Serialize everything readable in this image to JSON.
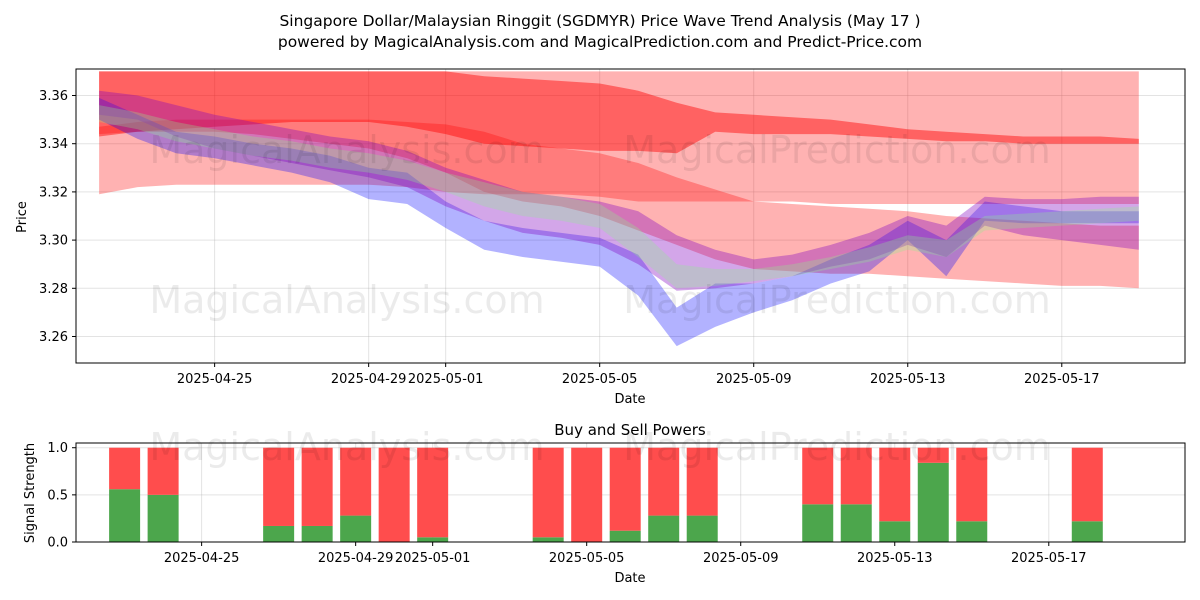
{
  "title_line1": "Singapore Dollar/Malaysian Ringgit (SGDMYR) Price Wave Trend Analysis (May 17 )",
  "title_line2": "powered by MagicalAnalysis.com and MagicalPrediction.com and Predict-Price.com",
  "watermarks": [
    "MagicalAnalysis.com",
    "MagicalPrediction.com"
  ],
  "colors": {
    "red_band": "#ff0000",
    "blue_band": "#0000ff",
    "purple_band": "#8000c0",
    "green_band": "#90ee90",
    "buy": "#4ca64c",
    "sell": "#ff4d4d"
  },
  "chart_data": [
    {
      "type": "area",
      "xlabel": "Date",
      "ylabel": "Price",
      "ylim": [
        3.249,
        3.371
      ],
      "xlim": [
        "2025-04-21",
        "2025-05-20"
      ],
      "x_ticks": [
        "2025-04-25",
        "2025-04-29",
        "2025-05-01",
        "2025-05-05",
        "2025-05-09",
        "2025-05-13",
        "2025-05-17"
      ],
      "y_ticks": [
        3.26,
        3.28,
        3.3,
        3.32,
        3.34,
        3.36
      ],
      "grid": true,
      "x": [
        "2025-04-22",
        "2025-04-23",
        "2025-04-24",
        "2025-04-25",
        "2025-04-26",
        "2025-04-27",
        "2025-04-28",
        "2025-04-29",
        "2025-04-30",
        "2025-05-01",
        "2025-05-02",
        "2025-05-03",
        "2025-05-04",
        "2025-05-05",
        "2025-05-06",
        "2025-05-07",
        "2025-05-08",
        "2025-05-09",
        "2025-05-10",
        "2025-05-11",
        "2025-05-12",
        "2025-05-13",
        "2025-05-14",
        "2025-05-15",
        "2025-05-16",
        "2025-05-17",
        "2025-05-18",
        "2025-05-19"
      ],
      "series": [
        {
          "color": "red",
          "opacity": 0.3,
          "upper": [
            3.37,
            3.37,
            3.37,
            3.37,
            3.37,
            3.37,
            3.37,
            3.37,
            3.37,
            3.37,
            3.37,
            3.37,
            3.37,
            3.37,
            3.37,
            3.37,
            3.37,
            3.37,
            3.37,
            3.37,
            3.37,
            3.37,
            3.37,
            3.37,
            3.37,
            3.37,
            3.37,
            3.37
          ],
          "lower": [
            3.319,
            3.322,
            3.323,
            3.323,
            3.323,
            3.323,
            3.323,
            3.323,
            3.322,
            3.32,
            3.319,
            3.319,
            3.319,
            3.318,
            3.316,
            3.316,
            3.316,
            3.316,
            3.316,
            3.315,
            3.315,
            3.315,
            3.315,
            3.315,
            3.315,
            3.315,
            3.315,
            3.315
          ]
        },
        {
          "color": "red",
          "opacity": 0.3,
          "upper": [
            3.347,
            3.349,
            3.35,
            3.35,
            3.35,
            3.35,
            3.35,
            3.35,
            3.349,
            3.348,
            3.345,
            3.34,
            3.338,
            3.336,
            3.332,
            3.326,
            3.321,
            3.316,
            3.315,
            3.314,
            3.313,
            3.312,
            3.31,
            3.309,
            3.308,
            3.307,
            3.306,
            3.306
          ],
          "lower": [
            3.344,
            3.345,
            3.345,
            3.345,
            3.344,
            3.342,
            3.34,
            3.338,
            3.334,
            3.328,
            3.32,
            3.316,
            3.314,
            3.31,
            3.304,
            3.298,
            3.292,
            3.288,
            3.287,
            3.286,
            3.286,
            3.285,
            3.284,
            3.283,
            3.282,
            3.281,
            3.281,
            3.28
          ]
        },
        {
          "color": "red",
          "opacity": 0.45,
          "upper": [
            3.37,
            3.37,
            3.37,
            3.37,
            3.37,
            3.37,
            3.37,
            3.37,
            3.37,
            3.37,
            3.368,
            3.367,
            3.366,
            3.365,
            3.362,
            3.357,
            3.353,
            3.352,
            3.351,
            3.35,
            3.348,
            3.346,
            3.345,
            3.344,
            3.343,
            3.343,
            3.343,
            3.342
          ],
          "lower": [
            3.343,
            3.345,
            3.346,
            3.347,
            3.348,
            3.349,
            3.349,
            3.349,
            3.347,
            3.344,
            3.34,
            3.339,
            3.338,
            3.337,
            3.337,
            3.336,
            3.345,
            3.344,
            3.344,
            3.344,
            3.343,
            3.342,
            3.341,
            3.341,
            3.34,
            3.34,
            3.34,
            3.34
          ]
        },
        {
          "color": "blue",
          "opacity": 0.3,
          "upper": [
            3.359,
            3.352,
            3.345,
            3.343,
            3.34,
            3.338,
            3.335,
            3.33,
            3.328,
            3.316,
            3.308,
            3.305,
            3.303,
            3.301,
            3.294,
            3.272,
            3.282,
            3.282,
            3.285,
            3.292,
            3.298,
            3.308,
            3.3,
            3.316,
            3.314,
            3.312,
            3.312,
            3.312
          ],
          "lower": [
            3.35,
            3.342,
            3.336,
            3.334,
            3.331,
            3.328,
            3.324,
            3.317,
            3.315,
            3.305,
            3.296,
            3.293,
            3.291,
            3.289,
            3.277,
            3.256,
            3.264,
            3.27,
            3.275,
            3.282,
            3.287,
            3.3,
            3.285,
            3.308,
            3.307,
            3.307,
            3.307,
            3.307
          ]
        },
        {
          "color": "purple",
          "opacity": 0.35,
          "upper": [
            3.362,
            3.36,
            3.356,
            3.352,
            3.349,
            3.346,
            3.343,
            3.341,
            3.337,
            3.33,
            3.325,
            3.32,
            3.318,
            3.316,
            3.312,
            3.302,
            3.296,
            3.292,
            3.294,
            3.298,
            3.303,
            3.31,
            3.306,
            3.318,
            3.317,
            3.317,
            3.318,
            3.318
          ],
          "lower": [
            3.352,
            3.35,
            3.343,
            3.338,
            3.335,
            3.332,
            3.329,
            3.326,
            3.322,
            3.314,
            3.308,
            3.303,
            3.301,
            3.298,
            3.29,
            3.279,
            3.28,
            3.282,
            3.285,
            3.289,
            3.292,
            3.298,
            3.293,
            3.306,
            3.302,
            3.3,
            3.298,
            3.296
          ]
        },
        {
          "color": "green",
          "opacity": 0.3,
          "upper": [
            3.356,
            3.353,
            3.349,
            3.346,
            3.343,
            3.341,
            3.338,
            3.336,
            3.333,
            3.328,
            3.324,
            3.32,
            3.318,
            3.315,
            3.305,
            3.29,
            3.288,
            3.288,
            3.29,
            3.293,
            3.297,
            3.302,
            3.3,
            3.31,
            3.311,
            3.312,
            3.313,
            3.314
          ],
          "lower": [
            3.349,
            3.346,
            3.341,
            3.338,
            3.335,
            3.333,
            3.33,
            3.328,
            3.325,
            3.32,
            3.314,
            3.31,
            3.308,
            3.305,
            3.293,
            3.28,
            3.281,
            3.283,
            3.285,
            3.288,
            3.291,
            3.296,
            3.293,
            3.304,
            3.305,
            3.306,
            3.307,
            3.308
          ]
        }
      ]
    },
    {
      "type": "bar",
      "title": "Buy and Sell Powers",
      "xlabel": "Date",
      "ylabel": "Signal Strength",
      "ylim": [
        0,
        1.05
      ],
      "y_ticks": [
        0.0,
        0.5,
        1.0
      ],
      "x_ticks": [
        "2025-04-25",
        "2025-04-29",
        "2025-05-01",
        "2025-05-05",
        "2025-05-09",
        "2025-05-13",
        "2025-05-17"
      ],
      "grid": true,
      "categories": [
        "2025-04-23",
        "2025-04-24",
        "2025-04-27",
        "2025-04-28",
        "2025-04-29",
        "2025-04-30",
        "2025-05-01",
        "2025-05-04",
        "2025-05-05",
        "2025-05-06",
        "2025-05-07",
        "2025-05-08",
        "2025-05-11",
        "2025-05-12",
        "2025-05-13",
        "2025-05-14",
        "2025-05-15",
        "2025-05-18"
      ],
      "series": [
        {
          "name": "buy",
          "values": [
            0.56,
            0.5,
            0.17,
            0.17,
            0.28,
            0.0,
            0.05,
            0.05,
            0.0,
            0.12,
            0.28,
            0.28,
            0.4,
            0.4,
            0.22,
            0.84,
            0.22,
            0.22
          ]
        },
        {
          "name": "sell",
          "values": [
            0.44,
            0.5,
            0.83,
            0.83,
            0.72,
            1.0,
            0.95,
            0.95,
            1.0,
            0.88,
            0.72,
            0.72,
            0.6,
            0.6,
            0.78,
            0.16,
            0.78,
            0.78
          ]
        }
      ]
    }
  ]
}
